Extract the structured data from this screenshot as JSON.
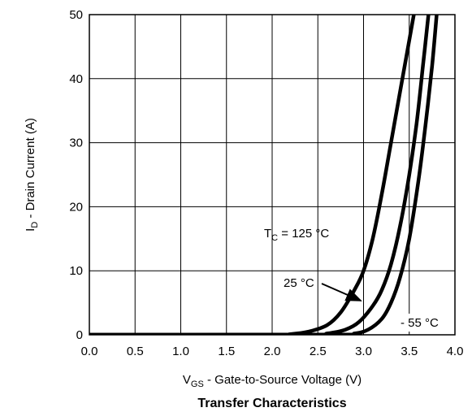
{
  "chart_data": {
    "type": "line",
    "title": "Transfer Characteristics",
    "xlabel": {
      "main": "V",
      "sub": "GS",
      "rest": " - Gate-to-Source Voltage (V)"
    },
    "ylabel": {
      "main": "I",
      "sub": "D",
      "rest": "  - Drain Current (A)"
    },
    "xlim": [
      0,
      4
    ],
    "ylim": [
      0,
      50
    ],
    "x_ticks": [
      0.0,
      0.5,
      1.0,
      1.5,
      2.0,
      2.5,
      3.0,
      3.5,
      4.0
    ],
    "x_tick_labels": [
      "0.0",
      "0.5",
      "1.0",
      "1.5",
      "2.0",
      "2.5",
      "3.0",
      "3.5",
      "4.0"
    ],
    "y_ticks": [
      0,
      10,
      20,
      30,
      40,
      50
    ],
    "y_tick_labels": [
      "0",
      "10",
      "20",
      "30",
      "40",
      "50"
    ],
    "grid": true,
    "line_color": "#000000",
    "series": [
      {
        "points": [
          [
            0,
            0
          ],
          [
            2.0,
            0.02
          ],
          [
            2.2,
            0.1
          ],
          [
            2.4,
            0.5
          ],
          [
            2.6,
            1.5
          ],
          [
            2.75,
            3.5
          ],
          [
            2.9,
            7
          ],
          [
            3.0,
            10
          ],
          [
            3.1,
            15
          ],
          [
            3.2,
            22
          ],
          [
            3.3,
            30
          ],
          [
            3.4,
            38
          ],
          [
            3.5,
            46
          ],
          [
            3.55,
            50
          ]
        ]
      },
      {
        "points": [
          [
            0,
            0
          ],
          [
            2.4,
            0.02
          ],
          [
            2.6,
            0.2
          ],
          [
            2.8,
            0.8
          ],
          [
            2.95,
            2
          ],
          [
            3.1,
            4.5
          ],
          [
            3.2,
            7
          ],
          [
            3.3,
            11
          ],
          [
            3.4,
            17
          ],
          [
            3.5,
            25
          ],
          [
            3.58,
            33
          ],
          [
            3.65,
            42
          ],
          [
            3.71,
            50
          ]
        ]
      },
      {
        "points": [
          [
            0,
            0
          ],
          [
            2.7,
            0.02
          ],
          [
            2.9,
            0.2
          ],
          [
            3.05,
            0.8
          ],
          [
            3.2,
            2.5
          ],
          [
            3.3,
            5
          ],
          [
            3.4,
            9
          ],
          [
            3.5,
            15
          ],
          [
            3.6,
            24
          ],
          [
            3.68,
            33
          ],
          [
            3.75,
            42
          ],
          [
            3.8,
            50
          ]
        ]
      }
    ],
    "annotations": [
      {
        "main": "T",
        "sub": "C",
        "rest": " = 125 °C"
      },
      {
        "text": "25 °C"
      },
      {
        "text": "- 55  °C"
      }
    ]
  }
}
